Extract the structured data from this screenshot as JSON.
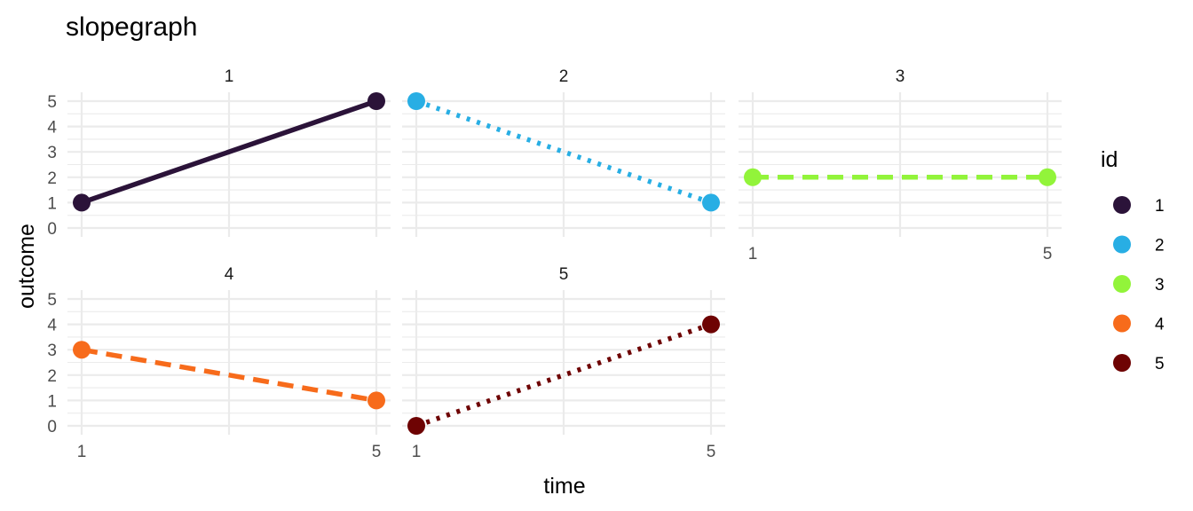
{
  "chart_data": {
    "type": "line",
    "title": "slopegraph",
    "xlabel": "time",
    "ylabel": "outcome",
    "x_ticks": [
      1,
      5
    ],
    "y_ticks": [
      0,
      1,
      2,
      3,
      4,
      5
    ],
    "xlim": [
      1,
      5
    ],
    "ylim": [
      0,
      5
    ],
    "grid": true,
    "facets": [
      "1",
      "2",
      "3",
      "4",
      "5"
    ],
    "legend": {
      "title": "id",
      "position": "right"
    },
    "series": [
      {
        "name": "1",
        "color": "#2b1339",
        "line_style": "solid",
        "points": [
          {
            "x": 1,
            "y": 1
          },
          {
            "x": 5,
            "y": 5
          }
        ]
      },
      {
        "name": "2",
        "color": "#28aee4",
        "line_style": "dotted",
        "points": [
          {
            "x": 1,
            "y": 5
          },
          {
            "x": 5,
            "y": 1
          }
        ]
      },
      {
        "name": "3",
        "color": "#92f43a",
        "line_style": "dashed",
        "points": [
          {
            "x": 1,
            "y": 2
          },
          {
            "x": 5,
            "y": 2
          }
        ]
      },
      {
        "name": "4",
        "color": "#f76b1b",
        "line_style": "dashed",
        "points": [
          {
            "x": 1,
            "y": 3
          },
          {
            "x": 5,
            "y": 1
          }
        ]
      },
      {
        "name": "5",
        "color": "#6e0303",
        "line_style": "dotted",
        "points": [
          {
            "x": 1,
            "y": 0
          },
          {
            "x": 5,
            "y": 4
          }
        ]
      }
    ]
  }
}
